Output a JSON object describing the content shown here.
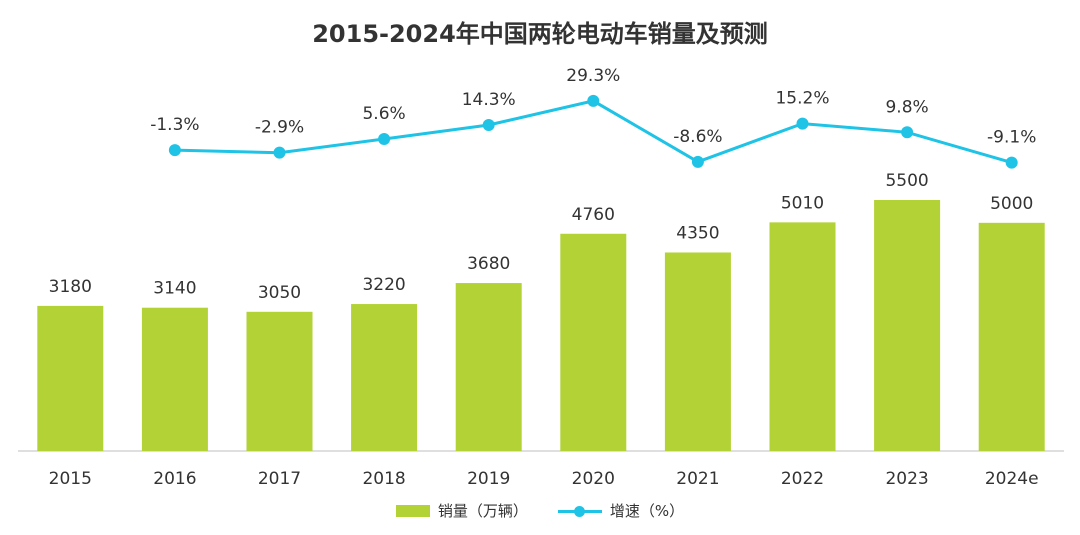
{
  "chart_data": {
    "type": "bar",
    "title": "2015-2024年中国两轮电动车销量及预测",
    "categories": [
      "2015",
      "2016",
      "2017",
      "2018",
      "2019",
      "2020",
      "2021",
      "2022",
      "2023",
      "2024e"
    ],
    "series": [
      {
        "name": "销量（万辆）",
        "type": "bar",
        "values": [
          3180,
          3140,
          3050,
          3220,
          3680,
          4760,
          4350,
          5010,
          5500,
          5000
        ],
        "labels": [
          "3180",
          "3140",
          "3050",
          "3220",
          "3680",
          "4760",
          "4350",
          "5010",
          "5500",
          "5000"
        ],
        "color": "#b2d235"
      },
      {
        "name": "增速（%）",
        "type": "line",
        "values": [
          null,
          -1.3,
          -2.9,
          5.6,
          14.3,
          29.3,
          -8.6,
          15.2,
          9.8,
          -9.1
        ],
        "labels": [
          null,
          "-1.3%",
          "-2.9%",
          "5.6%",
          "14.3%",
          "29.3%",
          "-8.6%",
          "15.2%",
          "9.8%",
          "-9.1%"
        ],
        "color": "#1ec3e6"
      }
    ],
    "grid": false,
    "legend_position": "bottom-center"
  }
}
